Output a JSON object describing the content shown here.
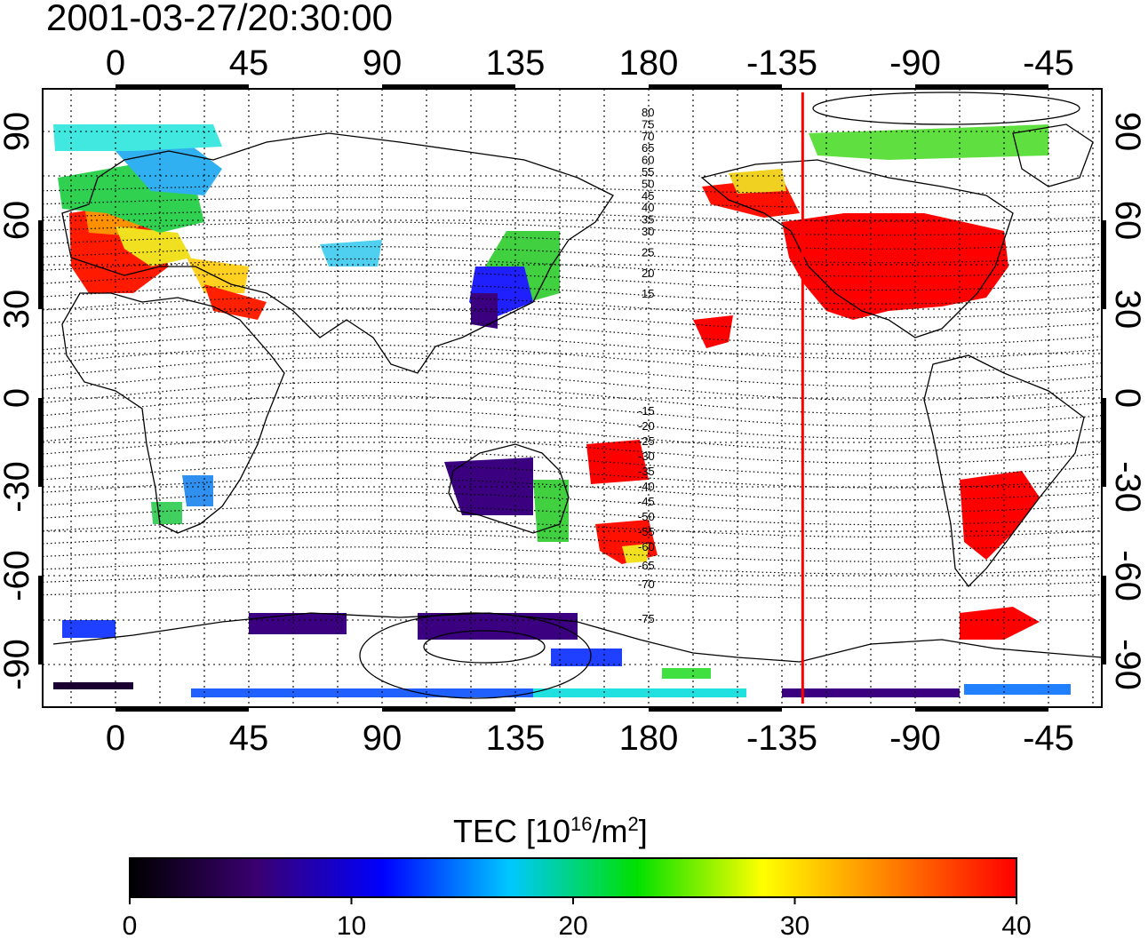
{
  "title": "2001-03-27/20:30:00",
  "colorbar": {
    "label_main": "TEC  [10",
    "label_exp": "16",
    "label_unit": "/m",
    "label_exp2": "2",
    "label_close": "]",
    "min": 0,
    "max": 40,
    "ticks": [
      "0",
      "10",
      "20",
      "30",
      "40"
    ],
    "colors": [
      "#000000",
      "#3a0070",
      "#0000ff",
      "#00c8ff",
      "#00e000",
      "#ffff00",
      "#ff8000",
      "#ff0000"
    ]
  },
  "map": {
    "lon_ticks_top": [
      "0",
      "45",
      "90",
      "135",
      "180",
      "-135",
      "-90",
      "-45"
    ],
    "lon_ticks_bottom": [
      "0",
      "45",
      "90",
      "135",
      "180",
      "-135",
      "-90",
      "-45"
    ],
    "lat_ticks_left": [
      "90",
      "60",
      "30",
      "0",
      "-30",
      "-60",
      "-90"
    ],
    "lat_ticks_right": [
      "90",
      "60",
      "30",
      "0",
      "-30",
      "-60",
      "-90"
    ],
    "contour_labels_north": [
      "80",
      "75",
      "70",
      "65",
      "60",
      "55",
      "50",
      "45",
      "40",
      "35",
      "30",
      "25",
      "20",
      "15"
    ],
    "contour_labels_south": [
      "-15",
      "-20",
      "-25",
      "-30",
      "-35",
      "-40",
      "-45",
      "-50",
      "-55",
      "-60",
      "-65",
      "-70",
      "-75"
    ],
    "terminator_lon": -128,
    "terminator_color": "#ff0000"
  }
}
